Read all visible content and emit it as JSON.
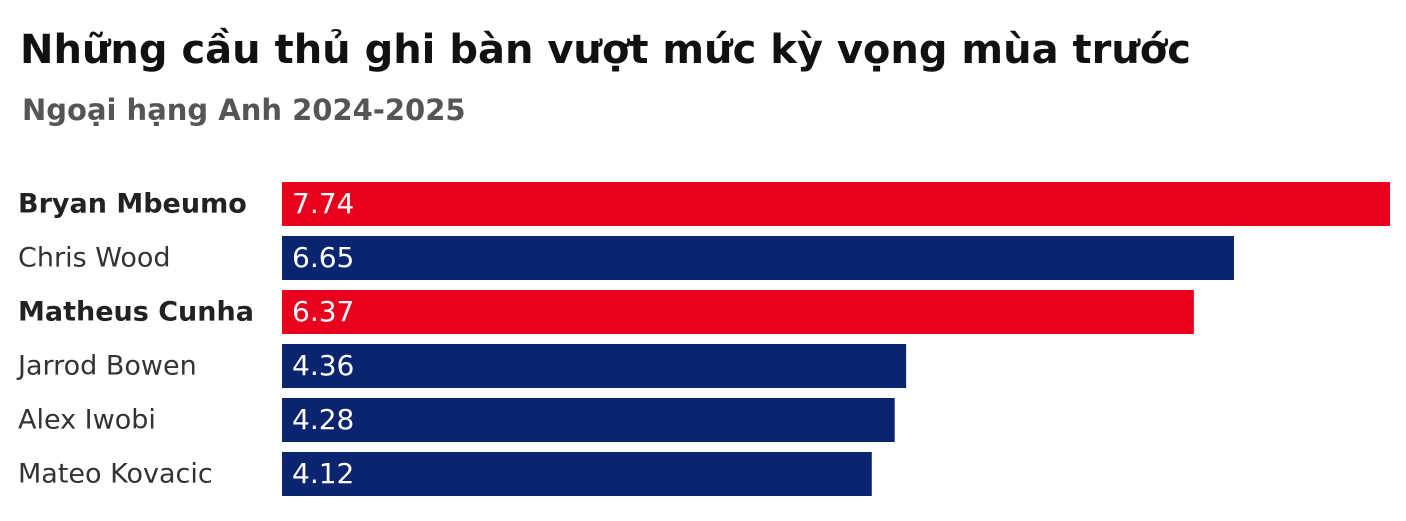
{
  "chart_data": {
    "type": "bar",
    "orientation": "horizontal",
    "title": "Những cầu thủ ghi bàn vượt mức kỳ vọng mùa trước",
    "subtitle": "Ngoại hạng Anh 2024-2025",
    "categories": [
      "Bryan Mbeumo",
      "Chris Wood",
      "Matheus Cunha",
      "Jarrod Bowen",
      "Alex Iwobi",
      "Mateo Kovacic"
    ],
    "values": [
      7.74,
      6.65,
      6.37,
      4.36,
      4.28,
      4.12
    ],
    "colors": [
      "#e8001c",
      "#0a2470",
      "#e8001c",
      "#0a2470",
      "#0a2470",
      "#0a2470"
    ],
    "highlight": [
      true,
      false,
      true,
      false,
      false,
      false
    ]
  }
}
